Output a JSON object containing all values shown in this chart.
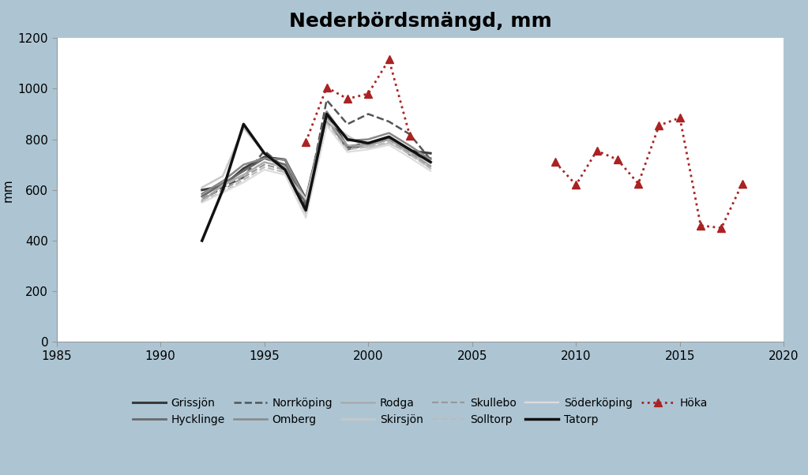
{
  "title": "Nederbördsmängd, mm",
  "ylabel": "mm",
  "xlim": [
    1985,
    2020
  ],
  "ylim": [
    0,
    1200
  ],
  "yticks": [
    0,
    200,
    400,
    600,
    800,
    1000,
    1200
  ],
  "xticks": [
    1985,
    1990,
    1995,
    2000,
    2005,
    2010,
    2015,
    2020
  ],
  "bg_outer": "#adc5d3",
  "bg_inner": "#ffffff",
  "series": {
    "Grissjön": {
      "segments": [
        {
          "years": [
            1992,
            1993,
            1994,
            1995,
            1996,
            1997,
            1998,
            1999,
            2000,
            2001,
            2002,
            2003
          ],
          "values": [
            600,
            615,
            685,
            730,
            720,
            565,
            905,
            770,
            785,
            800,
            755,
            745
          ]
        }
      ],
      "color": "#3a3a3a",
      "linestyle": "-",
      "linewidth": 2.2,
      "marker": null
    },
    "Hycklinge": {
      "segments": [
        {
          "years": [
            1992,
            1993,
            1994,
            1995,
            1996,
            1997,
            1998,
            1999,
            2000,
            2001,
            2002,
            2003
          ],
          "values": [
            575,
            625,
            675,
            725,
            700,
            545,
            885,
            760,
            780,
            810,
            740,
            725
          ]
        }
      ],
      "color": "#6a6a6a",
      "linestyle": "-",
      "linewidth": 2.0,
      "marker": null
    },
    "Norrköping": {
      "segments": [
        {
          "years": [
            1992,
            1993,
            1994,
            1995,
            1996,
            1997,
            1998,
            1999,
            2000,
            2001,
            2002,
            2003
          ],
          "values": [
            560,
            610,
            650,
            755,
            685,
            535,
            955,
            860,
            900,
            870,
            820,
            720
          ]
        }
      ],
      "color": "#555555",
      "linestyle": "--",
      "linewidth": 1.8,
      "marker": null
    },
    "Omberg": {
      "segments": [
        {
          "years": [
            1992,
            1993,
            1994,
            1995,
            1996,
            1997,
            1998,
            1999,
            2000,
            2001,
            2002,
            2003
          ],
          "values": [
            585,
            635,
            700,
            725,
            720,
            560,
            910,
            795,
            800,
            825,
            775,
            720
          ]
        }
      ],
      "color": "#888888",
      "linestyle": "-",
      "linewidth": 1.8,
      "marker": null
    },
    "Rodga": {
      "segments": [
        {
          "years": [
            1992,
            1993,
            1994,
            1995,
            1996,
            1997,
            1998,
            1999,
            2000,
            2001,
            2002,
            2003
          ],
          "values": [
            555,
            620,
            660,
            710,
            690,
            520,
            880,
            775,
            775,
            800,
            750,
            695
          ]
        }
      ],
      "color": "#aaaaaa",
      "linestyle": "-",
      "linewidth": 1.8,
      "marker": null
    },
    "Skirsjön": {
      "segments": [
        {
          "years": [
            1992,
            1993,
            1994,
            1995,
            1996,
            1997,
            1998,
            1999,
            2000,
            2001,
            2002,
            2003
          ],
          "values": [
            610,
            655,
            845,
            745,
            665,
            565,
            875,
            815,
            765,
            785,
            745,
            685
          ]
        }
      ],
      "color": "#c8c8c8",
      "linestyle": "-",
      "linewidth": 1.8,
      "marker": null
    },
    "Skullebo": {
      "segments": [
        {
          "years": [
            1992,
            1993,
            1994,
            1995,
            1996,
            1997,
            1998,
            1999,
            2000,
            2001,
            2002,
            2003
          ],
          "values": [
            570,
            600,
            650,
            700,
            680,
            510,
            870,
            775,
            780,
            800,
            745,
            690
          ]
        }
      ],
      "color": "#999999",
      "linestyle": "--",
      "linewidth": 1.6,
      "marker": null
    },
    "Solltorp": {
      "segments": [
        {
          "years": [
            1992,
            1993,
            1994,
            1995,
            1996,
            1997,
            1998,
            1999,
            2000,
            2001,
            2002,
            2003
          ],
          "values": [
            560,
            590,
            640,
            690,
            670,
            500,
            860,
            760,
            770,
            790,
            740,
            685
          ]
        }
      ],
      "color": "#bbbbbb",
      "linestyle": "--",
      "linewidth": 1.6,
      "marker": null
    },
    "Söderköping": {
      "segments": [
        {
          "years": [
            1992,
            1993,
            1994,
            1995,
            1996,
            1997,
            1998,
            1999,
            2000,
            2001,
            2002,
            2003
          ],
          "values": [
            550,
            590,
            630,
            680,
            660,
            490,
            855,
            750,
            760,
            778,
            728,
            675
          ]
        }
      ],
      "color": "#dddddd",
      "linestyle": "-",
      "linewidth": 1.6,
      "marker": null
    },
    "Tatorp": {
      "segments": [
        {
          "years": [
            1992,
            1993,
            1994,
            1995,
            1996,
            1997,
            1998,
            1999,
            2000,
            2001,
            2002,
            2003
          ],
          "values": [
            400,
            600,
            860,
            745,
            680,
            520,
            900,
            800,
            785,
            810,
            760,
            710
          ]
        }
      ],
      "color": "#111111",
      "linestyle": "-",
      "linewidth": 2.5,
      "marker": null
    },
    "Höka": {
      "segments": [
        {
          "years": [
            1997,
            1998,
            1999,
            2000,
            2001,
            2002
          ],
          "values": [
            790,
            1005,
            960,
            980,
            1115,
            815
          ]
        },
        {
          "years": [
            2009,
            2010,
            2011,
            2012,
            2013,
            2014,
            2015,
            2016,
            2017,
            2018
          ],
          "values": [
            710,
            620,
            755,
            720,
            625,
            855,
            885,
            460,
            450,
            625
          ]
        }
      ],
      "color": "#aa2222",
      "linestyle": ":",
      "linewidth": 2.0,
      "marker": "^",
      "markersize": 7
    }
  },
  "legend_row1": [
    "Grissjön",
    "Hycklinge",
    "Norrköping",
    "Omberg",
    "Rodga",
    "Skirsjön"
  ],
  "legend_row2": [
    "Skullebo",
    "Solltorp",
    "Söderköping",
    "Tatorp",
    "Höka"
  ]
}
